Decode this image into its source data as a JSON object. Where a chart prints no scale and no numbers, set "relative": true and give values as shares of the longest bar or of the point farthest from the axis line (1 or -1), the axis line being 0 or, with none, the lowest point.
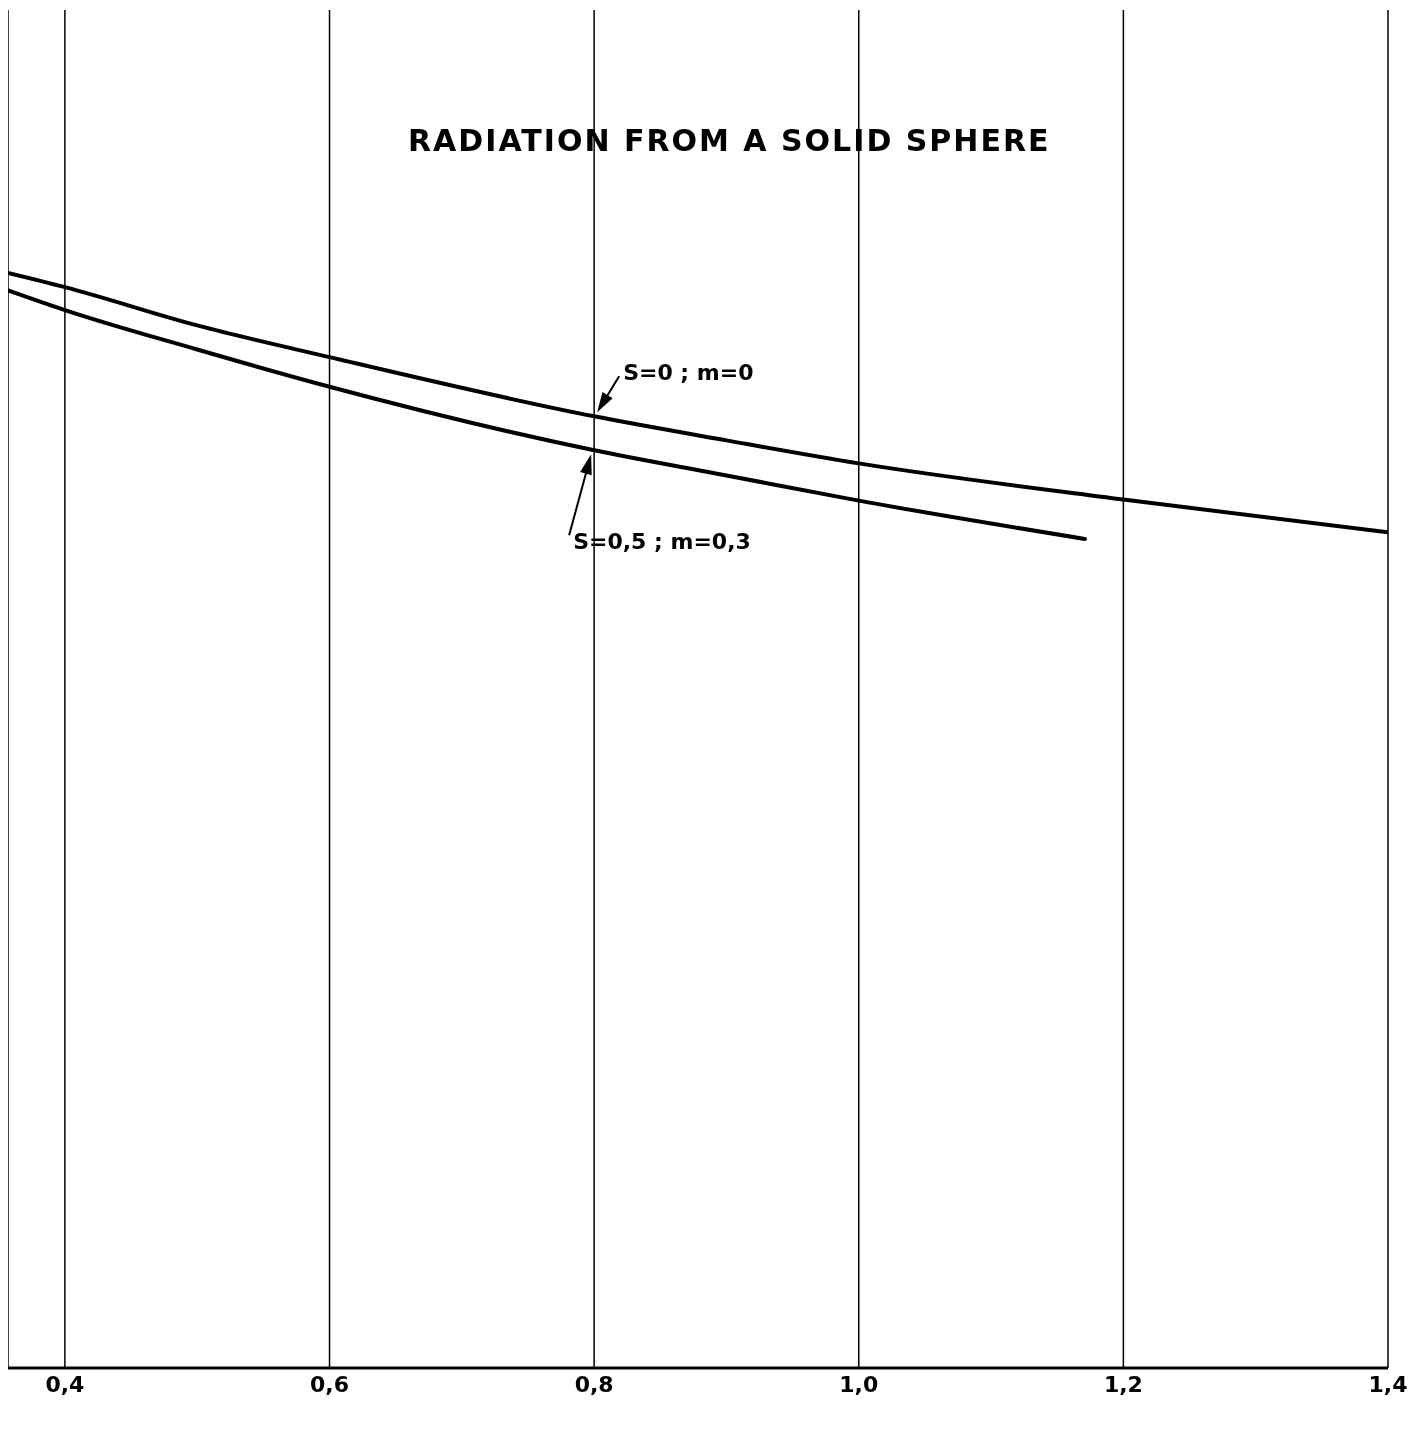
{
  "chart_data": {
    "type": "line",
    "title": "RADIATION FROM A SOLID SPHERE",
    "relative": true,
    "x": [
      0.357,
      0.4,
      0.5,
      0.6,
      0.8,
      0.9,
      1.0,
      1.2,
      1.4
    ],
    "series": [
      {
        "name": "S=0 ; m=0",
        "color": "#000000",
        "values": [
          1,
          0.987,
          0.952,
          0.923,
          0.869,
          0.847,
          0.826,
          0.793,
          0.763
        ]
      },
      {
        "name": "S=0,5 ; m=0,3",
        "color": "#000000",
        "x": [
          0.357,
          0.4,
          0.5,
          0.6,
          0.8,
          0.9,
          1.0,
          1.171
        ],
        "values": [
          0.984,
          0.966,
          0.93,
          0.896,
          0.838,
          0.815,
          0.792,
          0.757
        ]
      }
    ],
    "xlim": [
      0.357,
      1.4
    ],
    "xticks": [
      {
        "value": 0.4,
        "label": "0,4"
      },
      {
        "value": 0.6,
        "label": "0,6"
      },
      {
        "value": 0.8,
        "label": "0,8"
      },
      {
        "value": 1.0,
        "label": "1,0"
      },
      {
        "value": 1.2,
        "label": "1,2"
      },
      {
        "value": 1.4,
        "label": "1,4"
      }
    ],
    "grid": "x",
    "tick_labels": "x",
    "legend": false,
    "marker": "none",
    "line_style": "solid"
  }
}
